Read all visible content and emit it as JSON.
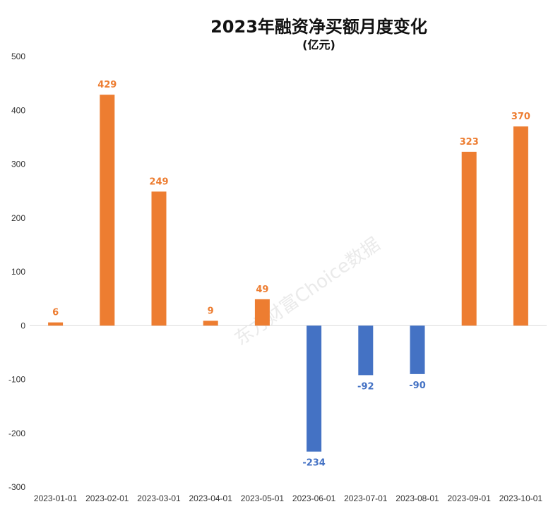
{
  "title": "2023年融资净买额月度变化",
  "subtitle": "(亿元)",
  "watermark": "东方财富Choice数据",
  "colors": {
    "positive": "#ED7D31",
    "negative": "#4472C4",
    "axis": "#D9D9D9",
    "text": "#333333"
  },
  "chart_data": {
    "type": "bar",
    "title": "2023年融资净买额月度变化",
    "subtitle": "(亿元)",
    "xlabel": "",
    "ylabel": "",
    "ylim": [
      -300,
      500
    ],
    "yticks": [
      500,
      400,
      300,
      200,
      100,
      0,
      -100,
      -200,
      -300
    ],
    "grid": false,
    "legend": "none",
    "categories": [
      "2023-01-01",
      "2023-02-01",
      "2023-03-01",
      "2023-04-01",
      "2023-05-01",
      "2023-06-01",
      "2023-07-01",
      "2023-08-01",
      "2023-09-01",
      "2023-10-01"
    ],
    "values": [
      6,
      429,
      249,
      9,
      49,
      -234,
      -92,
      -90,
      323,
      370
    ]
  }
}
